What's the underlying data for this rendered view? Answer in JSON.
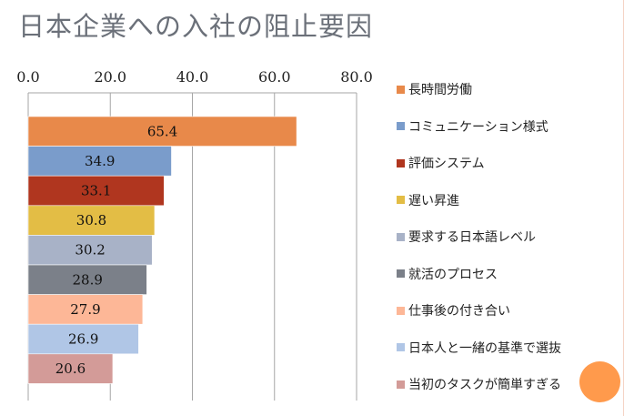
{
  "title": "日本企業への入社の阻止要因",
  "chart_data": {
    "type": "bar",
    "orientation": "horizontal",
    "title": "日本企業への入社の阻止要因",
    "xlabel": "",
    "ylabel": "",
    "xlim": [
      0,
      80
    ],
    "x_ticks": [
      "0.0",
      "20.0",
      "40.0",
      "60.0",
      "80.0"
    ],
    "x_tick_values": [
      0,
      20,
      40,
      60,
      80
    ],
    "x_axis_position": "top",
    "grid": true,
    "legend_position": "right",
    "categories": [
      "長時間労働",
      "コミュニケーション様式",
      "評価システム",
      "遅い昇進",
      "要求する日本語レベル",
      "就活のプロセス",
      "仕事後の付き合い",
      "日本人と一緒の基準で選抜",
      "当初のタスクが簡単すぎる"
    ],
    "values": [
      65.4,
      34.9,
      33.1,
      30.8,
      30.2,
      28.9,
      27.9,
      26.9,
      20.6
    ],
    "value_labels": [
      "65.4",
      "34.9",
      "33.1",
      "30.8",
      "30.2",
      "28.9",
      "27.9",
      "26.9",
      "20.6"
    ],
    "colors": [
      "#e8894a",
      "#7a9ccb",
      "#b0361f",
      "#e3bd45",
      "#a8b2c7",
      "#7b8089",
      "#fdb797",
      "#b0c6e6",
      "#d39b98"
    ]
  },
  "decoration": {
    "accent_dot_color": "#ff9a4c",
    "border_color": "#f5d3c4"
  }
}
